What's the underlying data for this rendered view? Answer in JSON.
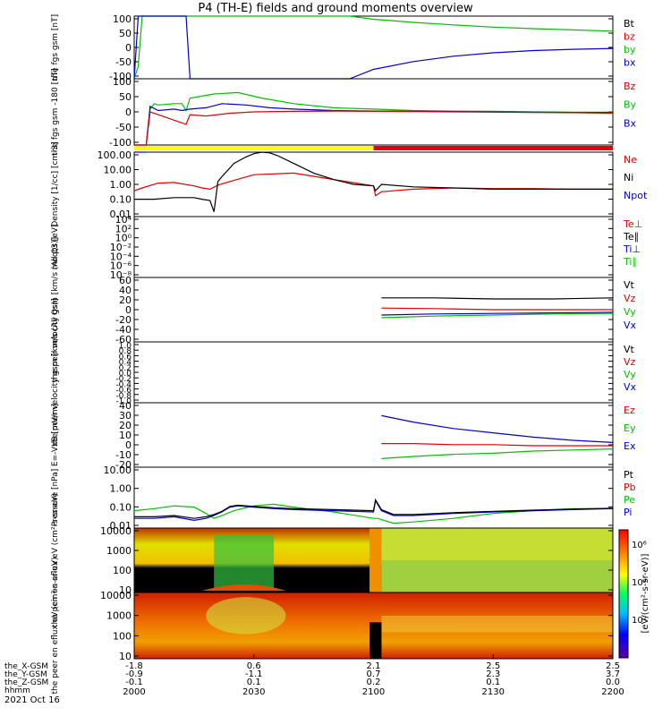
{
  "title": "P4 (TH-E) fields and ground moments overview",
  "colors": {
    "black": "#000000",
    "red": "#e00000",
    "green": "#00c000",
    "blue": "#0000d0",
    "yellow": "#ffff00",
    "barRed": "#e00000"
  },
  "chart_data": {
    "type": "line",
    "xaxis": {
      "hhmm": [
        "2000",
        "2030",
        "2100",
        "2130",
        "2200"
      ],
      "rows": [
        {
          "label": "the_X-GSM",
          "values": [
            "-1.8",
            "0.6",
            "2.1",
            "2.5",
            "2.5"
          ]
        },
        {
          "label": "the_Y-GSM",
          "values": [
            "-0.9",
            "-1.1",
            "0.7",
            "2.3",
            "3.7"
          ]
        },
        {
          "label": "the_Z-GSM",
          "values": [
            "-0.1",
            "0.1",
            "0.2",
            "0.1",
            "0.0"
          ]
        },
        {
          "label": "hhmm",
          "values": [
            "",
            "",
            "",
            "",
            ""
          ]
        }
      ],
      "date": "2021 Oct 16",
      "xlim_minutes_after_2000": [
        0,
        120
      ]
    },
    "panels": [
      {
        "key": "fgs",
        "ylabel": "the fgs gsm [nT]",
        "ticks": [
          "100",
          "50",
          "0",
          "-50",
          "-100"
        ],
        "ylim": [
          -100,
          100
        ],
        "legend": [
          {
            "name": "Bt",
            "color": "black"
          },
          {
            "name": "bz",
            "color": "red"
          },
          {
            "name": "by",
            "color": "green"
          },
          {
            "name": "bx",
            "color": "blue"
          }
        ]
      },
      {
        "key": "fgs2",
        "ylabel": "the fgs gsm -180 [nT]",
        "ticks": [
          "100",
          "50",
          "0",
          "-50",
          "-100"
        ],
        "ylim": [
          -120,
          120
        ],
        "legend": [
          {
            "name": "Bz",
            "color": "red"
          },
          {
            "name": "By",
            "color": "green"
          },
          {
            "name": "Bx",
            "color": "blue"
          }
        ]
      },
      {
        "key": "density",
        "ylabel": "Density [1/cc] [cm-3]",
        "ticks": [
          "100.00",
          "10.00",
          "1.00",
          "0.10",
          "0.01"
        ],
        "log": true,
        "ylim": [
          0.01,
          100
        ],
        "legend": [
          {
            "name": "Ne",
            "color": "red"
          },
          {
            "name": "Ni",
            "color": "black"
          },
          {
            "name": "Npot",
            "color": "blue"
          }
        ]
      },
      {
        "key": "temp",
        "ylabel": "moqt3 [eV]",
        "ticks": [
          "10⁴",
          "10²",
          "10⁰",
          "10⁻²",
          "10⁻⁴",
          "10⁻⁶",
          "10⁻⁸"
        ],
        "log": true,
        "legend": [
          {
            "name": "Te⊥",
            "color": "red"
          },
          {
            "name": "Te∥",
            "color": "black"
          },
          {
            "name": "Ti⊥",
            "color": "blue"
          },
          {
            "name": "Ti∥",
            "color": "green"
          }
        ]
      },
      {
        "key": "peirvel",
        "ylabel": "the peir velocity gsm [km/s (All Qs)]",
        "ticks": [
          "60",
          "40",
          "20",
          "0",
          "-20",
          "-40",
          "-60"
        ],
        "ylim": [
          -60,
          60
        ],
        "legend": [
          {
            "name": "Vt",
            "color": "black"
          },
          {
            "name": "Vz",
            "color": "red"
          },
          {
            "name": "Vy",
            "color": "green"
          },
          {
            "name": "Vx",
            "color": "blue"
          }
        ]
      },
      {
        "key": "peervel",
        "ylabel": "the peer velocity gsm [km/s (All Qs)]",
        "ticks": [
          "1.0",
          "0.8",
          "0.6",
          "0.4",
          "0.2",
          "0.0",
          "-0.2",
          "-0.4",
          "-0.6",
          "-0.8",
          "-1.0"
        ],
        "ylim": [
          -1,
          1
        ],
        "legend": [
          {
            "name": "Vt",
            "color": "black"
          },
          {
            "name": "Vz",
            "color": "red"
          },
          {
            "name": "Vy",
            "color": "green"
          },
          {
            "name": "Vx",
            "color": "blue"
          }
        ]
      },
      {
        "key": "efield",
        "ylabel": "E=-VxB [mV/m]",
        "ticks": [
          "40",
          "30",
          "20",
          "10",
          "0",
          "-10",
          "-20"
        ],
        "ylim": [
          -20,
          40
        ],
        "legend": [
          {
            "name": "Ez",
            "color": "red"
          },
          {
            "name": "Ey",
            "color": "green"
          },
          {
            "name": "Ex",
            "color": "blue"
          }
        ]
      },
      {
        "key": "pressure",
        "ylabel": "Pressure [nPa]",
        "ticks": [
          "10.00",
          "1.00",
          "0.10",
          "0.01"
        ],
        "log": true,
        "ylim": [
          0.005,
          30
        ],
        "legend": [
          {
            "name": "Pt",
            "color": "black"
          },
          {
            "name": "Pb",
            "color": "red"
          },
          {
            "name": "Pe",
            "color": "green"
          },
          {
            "name": "Pi",
            "color": "blue"
          }
        ]
      },
      {
        "key": "peir_spec",
        "ylabel": "the peir en eflux eV (cm²-s-sr-eV)",
        "ticks": [
          "10000",
          "1000",
          "100",
          "10"
        ],
        "spectrogram": true
      },
      {
        "key": "peer_spec",
        "ylabel": "the peer en eflux eV (cm²-s-sr-eV)",
        "ticks": [
          "10000",
          "1000",
          "100",
          "10"
        ],
        "spectrogram": true
      }
    ],
    "colorbar": {
      "label": "[eV/(cm²-s-sr-eV)]",
      "ticks": [
        "10⁶",
        "10⁴",
        "10²"
      ]
    },
    "series": {
      "fgs": [
        {
          "name": "by",
          "color": "green",
          "x": [
            0,
            1,
            2,
            3,
            54,
            60,
            70,
            80,
            90,
            100,
            110,
            120
          ],
          "y": [
            -100,
            -60,
            100,
            130,
            100,
            90,
            80,
            72,
            65,
            60,
            56,
            52
          ]
        },
        {
          "name": "bx",
          "color": "blue",
          "x": [
            0,
            1,
            13,
            14,
            54,
            60,
            70,
            80,
            90,
            100,
            110,
            120
          ],
          "y": [
            -100,
            130,
            130,
            -100,
            -100,
            -70,
            -45,
            -28,
            -17,
            -10,
            -6,
            -3
          ]
        }
      ],
      "fgs2": [
        {
          "name": "By",
          "color": "green",
          "x": [
            0,
            3,
            4,
            5,
            6,
            10,
            12,
            13,
            14,
            20,
            26,
            32,
            40,
            50,
            60,
            70,
            80,
            90,
            100,
            110,
            120
          ],
          "y": [
            -120,
            -120,
            10,
            30,
            25,
            30,
            30,
            5,
            50,
            65,
            70,
            50,
            30,
            15,
            10,
            5,
            3,
            2,
            0,
            -1,
            -1
          ]
        },
        {
          "name": "Bx",
          "color": "blue",
          "x": [
            0,
            3,
            4,
            6,
            10,
            12,
            14,
            18,
            22,
            28,
            34,
            40,
            50,
            60,
            70,
            80,
            90,
            100,
            110,
            120
          ],
          "y": [
            -120,
            -120,
            20,
            5,
            10,
            5,
            10,
            15,
            30,
            25,
            15,
            10,
            5,
            3,
            2,
            1,
            0,
            -1,
            -2,
            -3
          ]
        },
        {
          "name": "Bz",
          "color": "red",
          "x": [
            0,
            3,
            4,
            6,
            10,
            13,
            14,
            18,
            24,
            30,
            40,
            50,
            60,
            70,
            80,
            90,
            100,
            110,
            120
          ],
          "y": [
            -120,
            -120,
            0,
            -10,
            -30,
            -45,
            -10,
            -15,
            -5,
            0,
            2,
            3,
            2,
            1,
            0,
            -1,
            -2,
            -3,
            -5
          ]
        }
      ],
      "density": [
        {
          "name": "Ne",
          "color": "red",
          "x": [
            0,
            2,
            6,
            10,
            15,
            17,
            19,
            21,
            24,
            30,
            40,
            50,
            60,
            60.5,
            62,
            70,
            80,
            90,
            100,
            110,
            120
          ],
          "y": [
            0.4,
            0.6,
            1.2,
            1.3,
            0.8,
            0.6,
            0.5,
            0.9,
            1.5,
            4,
            5,
            2,
            0.8,
            0.2,
            0.35,
            0.5,
            0.6,
            0.55,
            0.55,
            0.5,
            0.5
          ]
        },
        {
          "name": "Ni",
          "color": "black",
          "x": [
            0,
            5,
            10,
            15,
            17,
            19,
            20,
            21,
            22,
            25,
            28,
            30,
            32,
            34,
            36,
            40,
            45,
            50,
            55,
            60,
            60.5,
            62,
            70,
            80,
            90,
            100,
            110,
            120
          ],
          "y": [
            0.12,
            0.12,
            0.15,
            0.15,
            0.12,
            0.1,
            0.02,
            1.5,
            3,
            20,
            50,
            80,
            100,
            90,
            60,
            20,
            5,
            2,
            1,
            0.8,
            0.4,
            1,
            0.7,
            0.6,
            0.5,
            0.5,
            0.5,
            0.5
          ]
        },
        {
          "name": "Npot",
          "color": "blue",
          "x": [
            0,
            2,
            3
          ],
          "y": [
            100,
            100,
            100
          ]
        }
      ],
      "peirvel": [
        {
          "name": "Vt",
          "color": "black",
          "x": [
            62,
            75,
            90,
            105,
            120
          ],
          "y": [
            22,
            22,
            20,
            20,
            22
          ]
        },
        {
          "name": "Vz",
          "color": "red",
          "x": [
            62,
            75,
            90,
            105,
            120
          ],
          "y": [
            3,
            2,
            0,
            0,
            0
          ]
        },
        {
          "name": "Vx",
          "color": "blue",
          "x": [
            62,
            75,
            90,
            105,
            120
          ],
          "y": [
            -10,
            -8,
            -7,
            -6,
            -5
          ]
        },
        {
          "name": "Vy",
          "color": "green",
          "x": [
            62,
            75,
            90,
            105,
            120
          ],
          "y": [
            -15,
            -12,
            -10,
            -8,
            -7
          ]
        }
      ],
      "efield": [
        {
          "name": "Ex",
          "color": "blue",
          "x": [
            62,
            70,
            80,
            90,
            100,
            110,
            120
          ],
          "y": [
            28,
            22,
            16,
            12,
            8,
            5,
            3
          ]
        },
        {
          "name": "Ez",
          "color": "red",
          "x": [
            62,
            70,
            80,
            90,
            100,
            110,
            120
          ],
          "y": [
            2,
            2,
            1,
            1,
            0,
            0,
            0
          ]
        },
        {
          "name": "Ey",
          "color": "green",
          "x": [
            62,
            70,
            80,
            90,
            100,
            110,
            120
          ],
          "y": [
            -12,
            -10,
            -8,
            -7,
            -5,
            -4,
            -3
          ]
        }
      ],
      "pressure": [
        {
          "name": "Pe",
          "color": "green",
          "x": [
            0,
            5,
            10,
            15,
            18,
            20,
            22,
            25,
            30,
            35,
            40,
            50,
            60,
            61,
            65,
            70,
            80,
            90,
            100,
            110,
            120
          ],
          "y": [
            0.06,
            0.08,
            0.12,
            0.1,
            0.04,
            0.02,
            0.03,
            0.06,
            0.12,
            0.15,
            0.1,
            0.05,
            0.02,
            0.02,
            0.01,
            0.012,
            0.02,
            0.04,
            0.06,
            0.08,
            0.08
          ]
        },
        {
          "name": "Pi",
          "color": "blue",
          "x": [
            0,
            5,
            10,
            15,
            18,
            20,
            22,
            24,
            26,
            30,
            35,
            40,
            50,
            60,
            60.5,
            62,
            65,
            70,
            80,
            90,
            100,
            110,
            120
          ],
          "y": [
            0.02,
            0.02,
            0.025,
            0.015,
            0.02,
            0.03,
            0.05,
            0.1,
            0.12,
            0.1,
            0.08,
            0.07,
            0.06,
            0.05,
            0.25,
            0.06,
            0.03,
            0.03,
            0.04,
            0.05,
            0.06,
            0.07,
            0.08
          ]
        },
        {
          "name": "Pt",
          "color": "black",
          "x": [
            0,
            5,
            10,
            15,
            18,
            20,
            22,
            24,
            26,
            30,
            35,
            40,
            50,
            60,
            60.5,
            62,
            65,
            70,
            80,
            90,
            100,
            110,
            120
          ],
          "y": [
            0.025,
            0.025,
            0.03,
            0.02,
            0.025,
            0.035,
            0.055,
            0.11,
            0.13,
            0.11,
            0.09,
            0.08,
            0.07,
            0.06,
            0.28,
            0.07,
            0.035,
            0.035,
            0.045,
            0.055,
            0.065,
            0.075,
            0.085
          ]
        }
      ]
    }
  }
}
